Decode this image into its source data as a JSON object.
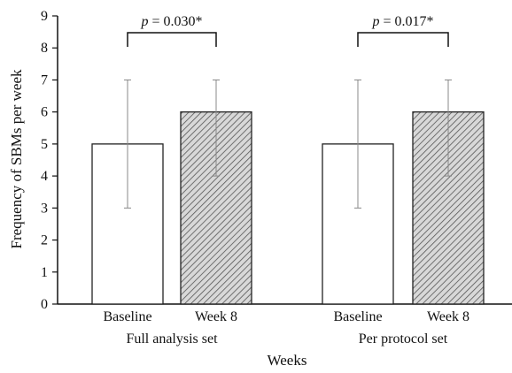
{
  "chart_data": {
    "type": "bar",
    "title": "",
    "xlabel": "Weeks",
    "ylabel": "Frequency of SBMs per week",
    "ylim": [
      0,
      9
    ],
    "yticks": [
      0,
      1,
      2,
      3,
      4,
      5,
      6,
      7,
      8,
      9
    ],
    "grid": false,
    "legend": "none",
    "groups": [
      {
        "name": "Full analysis set",
        "bars": [
          {
            "category": "Baseline",
            "value": 5,
            "error_low": 3,
            "error_high": 7,
            "fill": "white"
          },
          {
            "category": "Week 8",
            "value": 6,
            "error_low": 4,
            "error_high": 7,
            "fill": "hatched"
          }
        ],
        "p_value_prefix": "p",
        "p_value_text": " = 0.030*"
      },
      {
        "name": "Per protocol set",
        "bars": [
          {
            "category": "Baseline",
            "value": 5,
            "error_low": 3,
            "error_high": 7,
            "fill": "white"
          },
          {
            "category": "Week 8",
            "value": 6,
            "error_low": 4,
            "error_high": 7,
            "fill": "hatched"
          }
        ],
        "p_value_prefix": "p",
        "p_value_text": " = 0.017*"
      }
    ],
    "colors": {
      "bar_stroke": "#222222",
      "hatch_line": "#555555",
      "hatch_bg": "#d8d8d8",
      "error_bar": "#888888",
      "axis": "#111111"
    }
  }
}
